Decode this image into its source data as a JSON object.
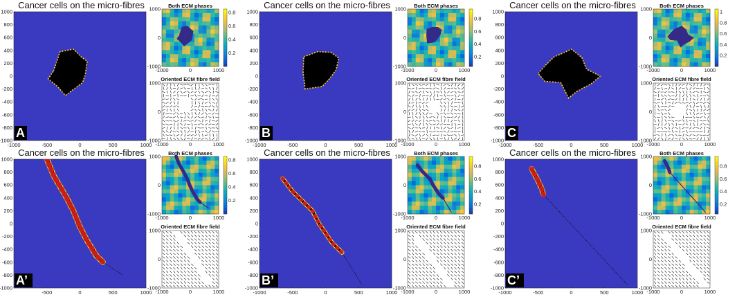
{
  "colors": {
    "background_matrix": "#3a3ac0",
    "cell_body": "#000000",
    "cell_edge_red": "#e0201a",
    "cell_edge_yellow": "#f5e030",
    "parula": [
      "#352a87",
      "#0363e1",
      "#1485d4",
      "#06a7c6",
      "#38b99e",
      "#92bf73",
      "#d9ba56",
      "#fcce2e",
      "#f9fb0e"
    ]
  },
  "panels": [
    {
      "label": "A",
      "main_title": "Cancer cells on the micro-fibres",
      "main_axes": {
        "x_ticks": [
          "-1000",
          "-500",
          "0",
          "500",
          "1000"
        ],
        "y_ticks": [
          "1000",
          "800",
          "600",
          "400",
          "200",
          "0",
          "-200",
          "-400",
          "-600",
          "-800",
          "-1000"
        ],
        "xlim": [
          -1000,
          1000
        ],
        "ylim": [
          -1000,
          1000
        ]
      },
      "ecm": {
        "title": "Both ECM phases",
        "x_ticks": [
          "-1000",
          "0",
          "1000"
        ],
        "y_ticks": [
          "1000",
          "0",
          "-1000"
        ],
        "colorbar_ticks": [
          "0.8",
          "0.6",
          "0.4",
          "0.2"
        ],
        "clim": [
          0,
          0.85
        ],
        "fibre_pattern": "random"
      },
      "fibre": {
        "title": "Oriented ECM fibre field",
        "x_ticks": [
          "-1000",
          "0",
          "1000"
        ],
        "y_ticks": [
          "1000",
          "0",
          "-1000"
        ],
        "orientation": "random"
      },
      "tumour": {
        "shape": "blob",
        "center": [
          -200,
          250
        ],
        "radius": 260,
        "vertices": [
          [
            -400,
            80
          ],
          [
            -300,
            380
          ],
          [
            -100,
            420
          ],
          [
            20,
            300
          ],
          [
            110,
            230
          ],
          [
            80,
            20
          ],
          [
            40,
            -100
          ],
          [
            -220,
            -300
          ],
          [
            -340,
            -160
          ],
          [
            -480,
            -40
          ]
        ]
      }
    },
    {
      "label": "B",
      "main_title": "Cancer cells on the micro-fibres",
      "main_axes": {
        "x_ticks": [
          "-1000",
          "-500",
          "0",
          "500",
          "1000"
        ],
        "y_ticks": [
          "1000",
          "800",
          "600",
          "400",
          "200",
          "0",
          "-200",
          "-400",
          "-600",
          "-800",
          "-1000"
        ],
        "xlim": [
          -1000,
          1000
        ],
        "ylim": [
          -1000,
          1000
        ]
      },
      "ecm": {
        "title": "Both ECM phases",
        "x_ticks": [
          "-1000",
          "0",
          "1000"
        ],
        "y_ticks": [
          "1000",
          "0",
          "-1000"
        ],
        "colorbar_ticks": [
          "0.8",
          "0.6",
          "0.4",
          "0.2"
        ],
        "clim": [
          0.05,
          0.95
        ],
        "fibre_pattern": "random"
      },
      "fibre": {
        "title": "Oriented ECM fibre field",
        "x_ticks": [
          "-1000",
          "0",
          "1000"
        ],
        "y_ticks": [
          "1000",
          "0",
          "-1000"
        ],
        "orientation": "random"
      },
      "tumour": {
        "shape": "blob",
        "center": [
          -50,
          150
        ],
        "radius": 260,
        "vertices": [
          [
            -330,
            300
          ],
          [
            -120,
            380
          ],
          [
            80,
            370
          ],
          [
            200,
            280
          ],
          [
            160,
            100
          ],
          [
            60,
            -40
          ],
          [
            -50,
            -160
          ],
          [
            -310,
            -200
          ],
          [
            -340,
            60
          ]
        ]
      }
    },
    {
      "label": "C",
      "main_title": "Cancer cells on the micro-fibres",
      "main_axes": {
        "x_ticks": [
          "-1000",
          "-500",
          "0",
          "500",
          "1000"
        ],
        "y_ticks": [
          "1000",
          "800",
          "600",
          "400",
          "200",
          "0",
          "-200",
          "-400",
          "-600",
          "-800",
          "-1000"
        ],
        "xlim": [
          -1000,
          1000
        ],
        "ylim": [
          -1000,
          1000
        ]
      },
      "ecm": {
        "title": "Both ECM phases",
        "x_ticks": [
          "-1000",
          "0",
          "1000"
        ],
        "y_ticks": [
          "1000",
          "0",
          "-1000"
        ],
        "colorbar_ticks": [
          "1",
          "0.8",
          "0.6",
          "0.4",
          "0.2"
        ],
        "clim": [
          0,
          1.05
        ],
        "fibre_pattern": "random"
      },
      "fibre": {
        "title": "Oriented ECM fibre field",
        "x_ticks": [
          "-1000",
          "0",
          "1000"
        ],
        "y_ticks": [
          "1000",
          "0",
          "-1000"
        ],
        "orientation": "random"
      },
      "tumour": {
        "shape": "blob",
        "center": [
          -100,
          40
        ],
        "radius": 280,
        "vertices": [
          [
            -500,
            40
          ],
          [
            -380,
            180
          ],
          [
            -260,
            300
          ],
          [
            -120,
            360
          ],
          [
            0,
            420
          ],
          [
            160,
            290
          ],
          [
            230,
            110
          ],
          [
            440,
            0
          ],
          [
            300,
            -120
          ],
          [
            80,
            -240
          ],
          [
            -40,
            -340
          ],
          [
            -160,
            -100
          ],
          [
            -400,
            -80
          ]
        ]
      }
    },
    {
      "label": "A’",
      "main_title": "Cancer cells on the micro-fibres",
      "main_axes": {
        "x_ticks": [
          "-500",
          "0",
          "500",
          "1000"
        ],
        "y_ticks": [
          "1000",
          "800",
          "600",
          "400",
          "200",
          "0",
          "-200",
          "-400",
          "-600",
          "-800",
          "-1000"
        ],
        "xlim": [
          -1000,
          1000
        ],
        "ylim": [
          -1000,
          1000
        ]
      },
      "ecm": {
        "title": "Both ECM phases",
        "x_ticks": [
          "-1000",
          "0",
          "1000"
        ],
        "y_ticks": [
          "1000",
          "0",
          "-1000"
        ],
        "colorbar_ticks": [
          "0.8",
          "0.6",
          "0.4",
          "0.2"
        ],
        "clim": [
          0,
          0.85
        ],
        "fibre_pattern": "aligned"
      },
      "fibre": {
        "title": "Oriented ECM fibre field",
        "x_ticks": [
          "-1000",
          "0",
          "1000"
        ],
        "y_ticks": [
          "1000",
          "0",
          "-1000"
        ],
        "orientation": "aligned"
      },
      "tumour": {
        "shape": "strand",
        "path": [
          [
            -500,
            1000
          ],
          [
            -400,
            750
          ],
          [
            -200,
            400
          ],
          [
            -100,
            200
          ],
          [
            0,
            -50
          ],
          [
            100,
            -250
          ],
          [
            250,
            -500
          ],
          [
            350,
            -600
          ]
        ],
        "width": 60,
        "tail_to": [
          650,
          -800
        ]
      }
    },
    {
      "label": "B’",
      "main_title": "Cancer cells on the micro-fibres",
      "main_axes": {
        "x_ticks": [
          "-1000",
          "-500",
          "0",
          "500",
          "1000"
        ],
        "y_ticks": [
          "1000",
          "800",
          "600",
          "400",
          "200",
          "0",
          "-200",
          "-400",
          "-600",
          "-800",
          "-1000"
        ],
        "xlim": [
          -1000,
          1000
        ],
        "ylim": [
          -1000,
          1000
        ]
      },
      "ecm": {
        "title": "Both ECM phases",
        "x_ticks": [
          "-1000",
          "0",
          "1000"
        ],
        "y_ticks": [
          "1000",
          "0",
          "-1000"
        ],
        "colorbar_ticks": [
          "0.8",
          "0.6",
          "0.4",
          "0.2"
        ],
        "clim": [
          0.05,
          0.95
        ],
        "fibre_pattern": "aligned"
      },
      "fibre": {
        "title": "Oriented ECM fibre field",
        "x_ticks": [
          "-1000",
          "0",
          "1000"
        ],
        "y_ticks": [
          "1000",
          "0",
          "-1000"
        ],
        "orientation": "aligned"
      },
      "tumour": {
        "shape": "strand",
        "path": [
          [
            -650,
            700
          ],
          [
            -500,
            500
          ],
          [
            -350,
            350
          ],
          [
            -200,
            200
          ],
          [
            -100,
            0
          ],
          [
            0,
            -150
          ],
          [
            100,
            -300
          ],
          [
            200,
            -400
          ],
          [
            250,
            -450
          ]
        ],
        "width": 40,
        "tail_to": [
          550,
          -950
        ]
      }
    },
    {
      "label": "C’",
      "main_title": "Cancer cells on the micro-fibres",
      "main_axes": {
        "x_ticks": [
          "-1000",
          "-500",
          "0",
          "500",
          "1000"
        ],
        "y_ticks": [
          "1000",
          "800",
          "600",
          "400",
          "200",
          "0",
          "-200",
          "-400",
          "-600",
          "-800",
          "-1000"
        ],
        "xlim": [
          -1000,
          1000
        ],
        "ylim": [
          -1000,
          1000
        ]
      },
      "ecm": {
        "title": "Both ECM phases",
        "x_ticks": [
          "-1000",
          "0",
          "1000"
        ],
        "y_ticks": [
          "1000",
          "0",
          "-1000"
        ],
        "colorbar_ticks": [
          "0.8",
          "0.6",
          "0.4",
          "0.2"
        ],
        "clim": [
          0.05,
          0.95
        ],
        "fibre_pattern": "aligned"
      },
      "fibre": {
        "title": "Oriented ECM fibre field",
        "x_ticks": [
          "-1000",
          "0",
          "1000"
        ],
        "y_ticks": [
          "1000",
          "0",
          "-1000"
        ],
        "orientation": "aligned"
      },
      "tumour": {
        "shape": "strand",
        "path": [
          [
            -600,
            850
          ],
          [
            -520,
            700
          ],
          [
            -450,
            550
          ],
          [
            -420,
            450
          ]
        ],
        "width": 55,
        "tail_to": [
          850,
          -950
        ]
      }
    }
  ]
}
